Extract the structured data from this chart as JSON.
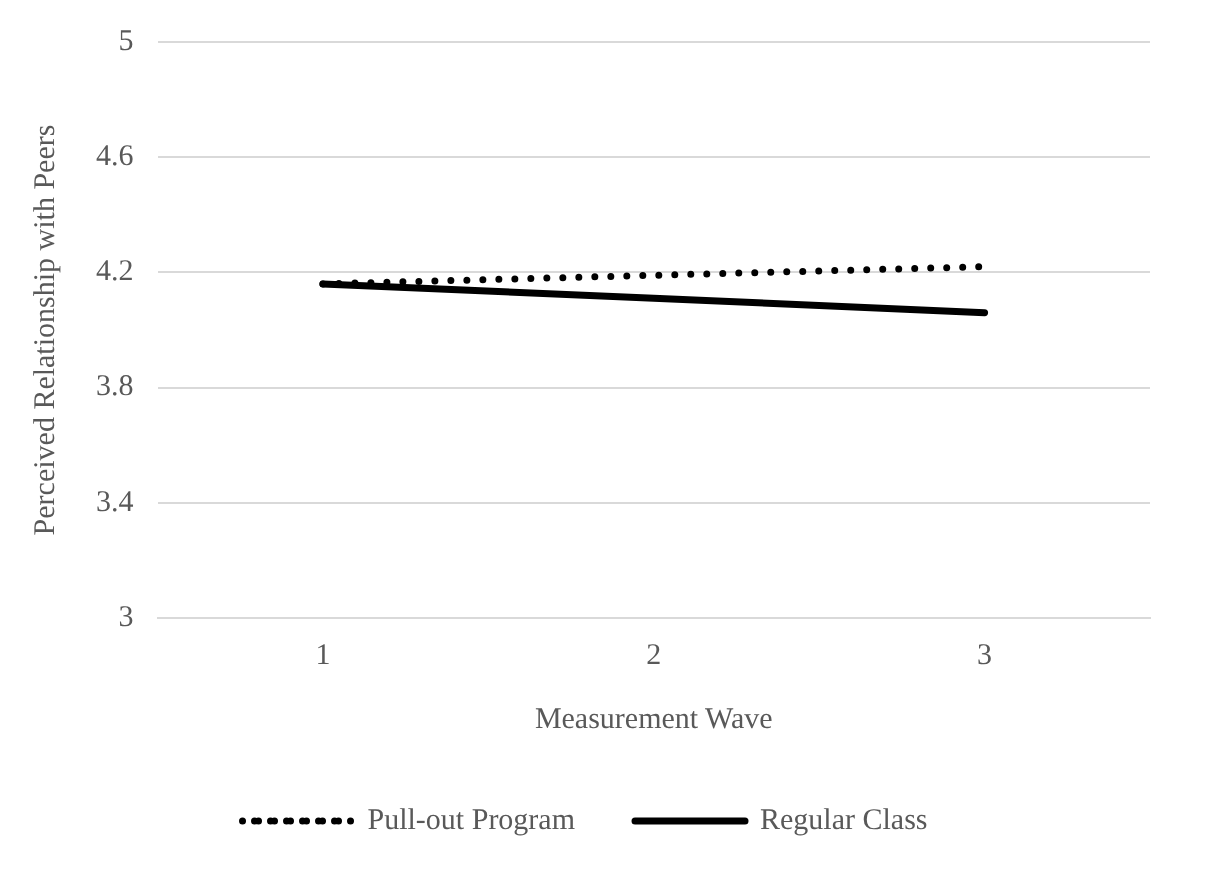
{
  "chart_data": {
    "type": "line",
    "xlabel": "Measurement Wave",
    "ylabel": "Perceived Relationship with Peers",
    "categories": [
      "1",
      "2",
      "3"
    ],
    "series": [
      {
        "name": "Pull-out Program",
        "color": "#000000",
        "line_style": "dotted",
        "values": [
          4.16,
          4.19,
          4.22
        ]
      },
      {
        "name": "Regular Class",
        "color": "#000000",
        "line_style": "solid",
        "values": [
          4.16,
          4.11,
          4.06
        ]
      }
    ],
    "ylim": [
      3,
      5
    ],
    "yticks": [
      3,
      3.4,
      3.8,
      4.2,
      4.6,
      5
    ],
    "grid": "y",
    "legend": "bottom",
    "marker": "none"
  }
}
